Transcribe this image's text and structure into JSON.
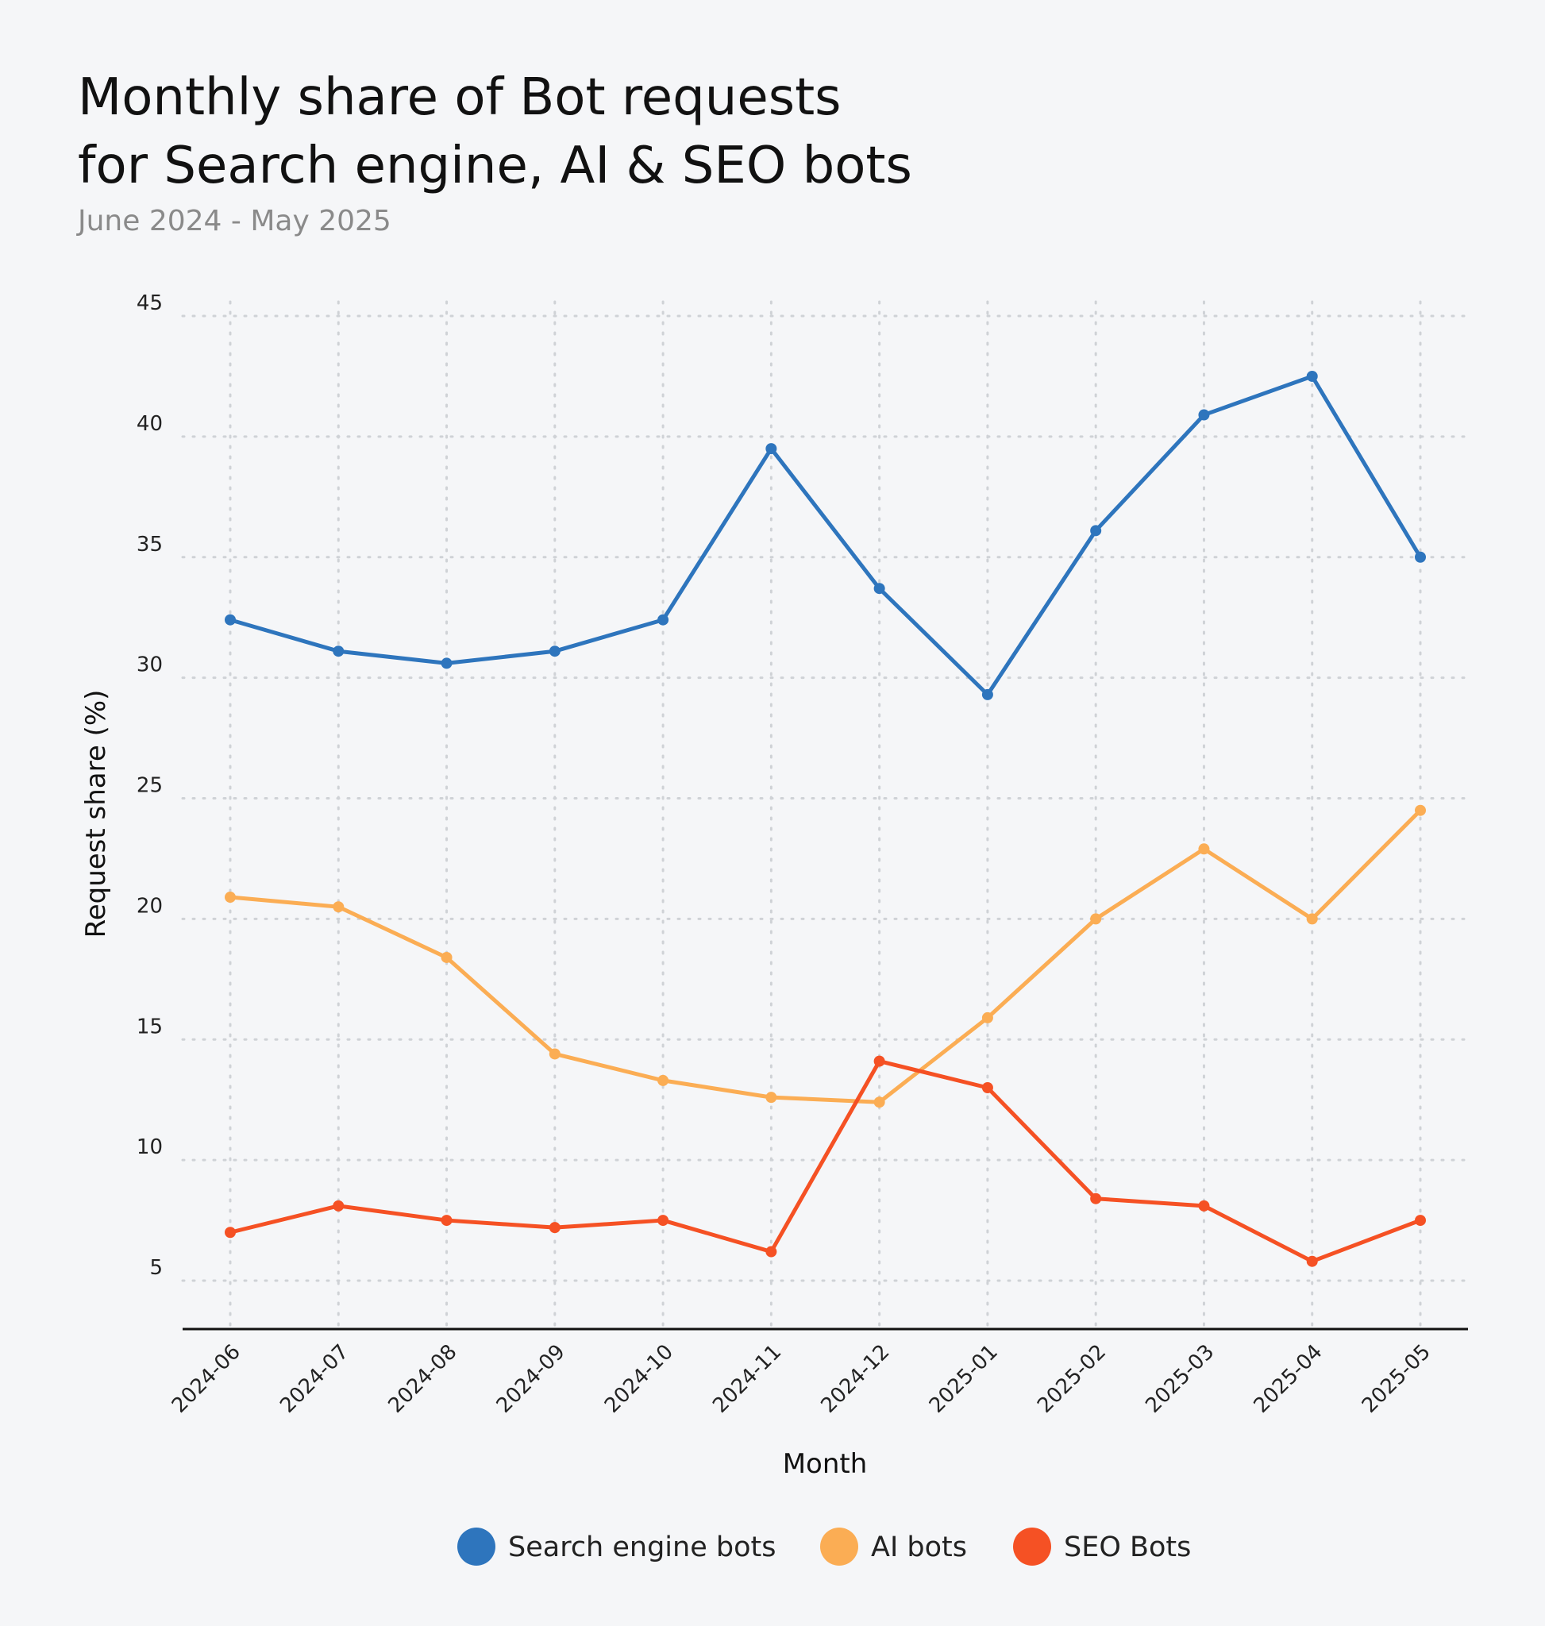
{
  "chart_data": {
    "type": "line",
    "title": "Monthly share of Bot requests for Search engine, AI & SEO bots",
    "title_lines": [
      "Monthly share of Bot requests",
      "for Search engine, AI & SEO bots"
    ],
    "subtitle": "June 2024 - May 2025",
    "xlabel": "Month",
    "ylabel": "Request share (%)",
    "ylim": [
      3,
      45
    ],
    "yticks": [
      5,
      10,
      15,
      20,
      25,
      30,
      35,
      40,
      45
    ],
    "grid": true,
    "legend_position": "bottom",
    "categories": [
      "2024-06",
      "2024-07",
      "2024-08",
      "2024-09",
      "2024-10",
      "2024-11",
      "2024-12",
      "2025-01",
      "2025-02",
      "2025-03",
      "2025-04",
      "2025-05"
    ],
    "series": [
      {
        "name": "Search engine bots",
        "color": "#2e75bd",
        "values": [
          32.4,
          31.1,
          30.6,
          31.1,
          32.4,
          39.5,
          33.7,
          29.3,
          36.1,
          40.9,
          42.5,
          35.0
        ]
      },
      {
        "name": "AI bots",
        "color": "#fbad54",
        "values": [
          20.9,
          20.5,
          18.4,
          14.4,
          13.3,
          12.6,
          12.4,
          15.9,
          20.0,
          22.9,
          20.0,
          24.5
        ]
      },
      {
        "name": "SEO Bots",
        "color": "#f55124",
        "values": [
          7.0,
          8.1,
          7.5,
          7.2,
          7.5,
          6.2,
          14.1,
          13.0,
          8.4,
          8.1,
          5.8,
          7.5
        ]
      }
    ]
  }
}
